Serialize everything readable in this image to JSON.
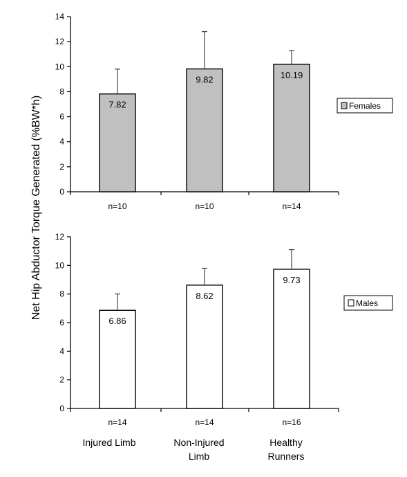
{
  "ylabel": "Net Hip Abductor Torque Generated (%BW*h)",
  "categories": [
    "Injured Limb",
    "Non-Injured Limb",
    "Healthy Runners"
  ],
  "chart_data": [
    {
      "type": "bar",
      "categories": [
        "Injured Limb",
        "Non-Injured Limb",
        "Healthy Runners"
      ],
      "series": [
        {
          "name": "Females",
          "values": [
            7.82,
            9.82,
            10.19
          ],
          "value_labels": [
            "7.82",
            "9.82",
            "10.19"
          ],
          "error_upper": [
            9.8,
            12.8,
            11.3
          ],
          "color": "#c0c0c0"
        }
      ],
      "n_labels": [
        "n=10",
        "n=10",
        "n=14"
      ],
      "ylim": [
        0,
        14
      ],
      "yticks": [
        0,
        2,
        4,
        6,
        8,
        10,
        12,
        14
      ],
      "grid": false,
      "legend": "right"
    },
    {
      "type": "bar",
      "categories": [
        "Injured Limb",
        "Non-Injured Limb",
        "Healthy Runners"
      ],
      "series": [
        {
          "name": "Males",
          "values": [
            6.86,
            8.62,
            9.73
          ],
          "value_labels": [
            "6.86",
            "8.62",
            "9.73"
          ],
          "error_upper": [
            8.0,
            9.8,
            11.1
          ],
          "color": "#ffffff"
        }
      ],
      "n_labels": [
        "n=14",
        "n=14",
        "n=16"
      ],
      "ylim": [
        0,
        12
      ],
      "yticks": [
        0,
        2,
        4,
        6,
        8,
        10,
        12
      ],
      "grid": false,
      "legend": "right"
    }
  ]
}
